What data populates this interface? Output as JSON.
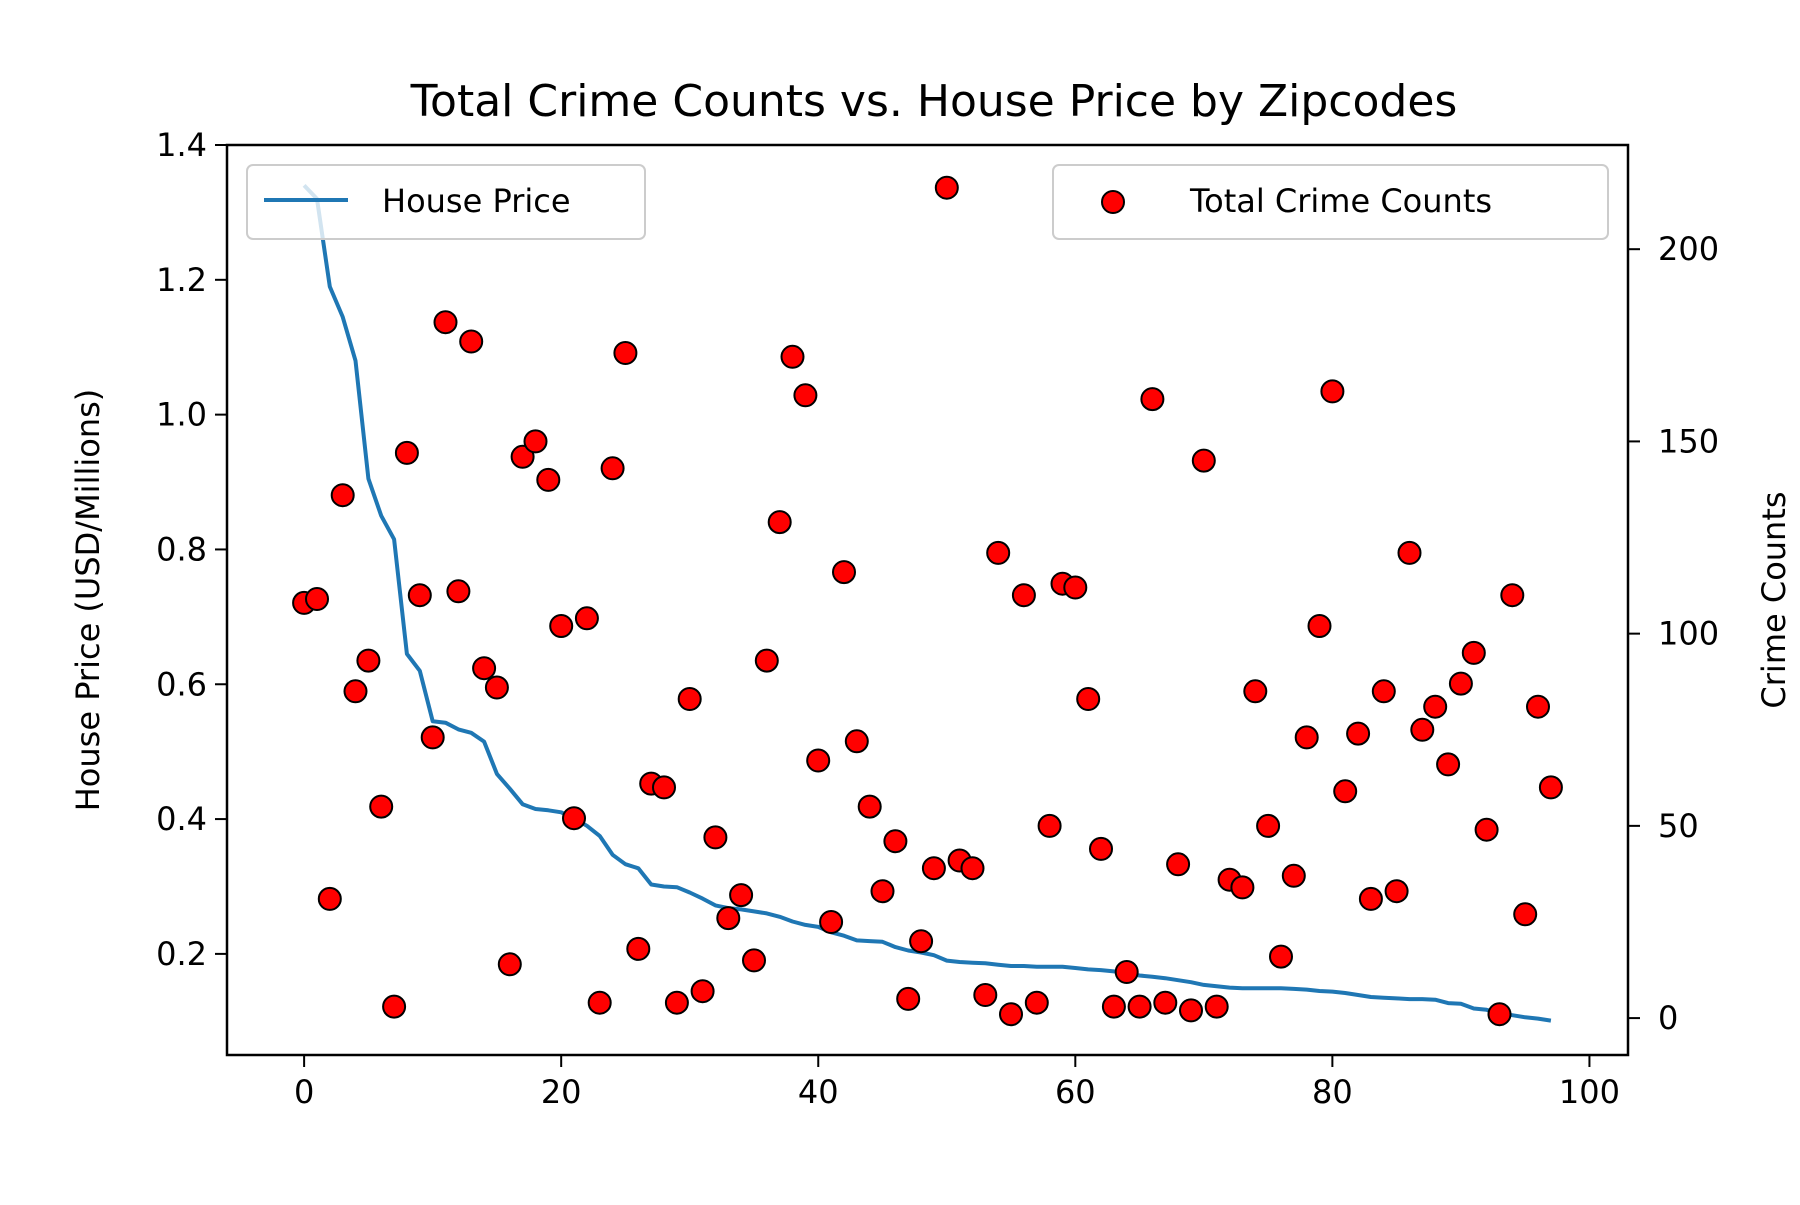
{
  "chart_data": {
    "type": "line+scatter",
    "title": "Total Crime Counts vs. House Price by Zipcodes",
    "xlabel": "",
    "ylabel_left": "House Price (USD/Millions)",
    "ylabel_right": "Crime Counts",
    "xlim": [
      -6,
      103
    ],
    "ylim_left": [
      0.05,
      1.4
    ],
    "ylim_right": [
      -9.6,
      227.1
    ],
    "xticks": [
      0,
      20,
      40,
      60,
      80,
      100
    ],
    "xtick_labels": [
      "0",
      "20",
      "40",
      "60",
      "80",
      "100"
    ],
    "yticks_left": [
      0.2,
      0.4,
      0.6,
      0.8,
      1.0,
      1.2,
      1.4
    ],
    "ytick_labels_left": [
      "0.2",
      "0.4",
      "0.6",
      "0.8",
      "1.0",
      "1.2",
      "1.4"
    ],
    "yticks_right": [
      0,
      50,
      100,
      150,
      200
    ],
    "ytick_labels_right": [
      "0",
      "50",
      "100",
      "150",
      "200"
    ],
    "grid": false,
    "legend_left": {
      "position": "upper-left",
      "label": "House Price"
    },
    "legend_right": {
      "position": "upper-right",
      "label": "Total Crime Counts"
    },
    "colors": {
      "line": "#1f77b4",
      "marker_fill": "#ff0000",
      "marker_edge": "#000000"
    },
    "series": [
      {
        "name": "House Price",
        "kind": "line",
        "axis": "left",
        "x": [
          0,
          1,
          2,
          3,
          4,
          5,
          6,
          7,
          8,
          9,
          10,
          11,
          12,
          13,
          14,
          15,
          16,
          17,
          18,
          19,
          20,
          21,
          22,
          23,
          24,
          25,
          26,
          27,
          28,
          29,
          30,
          31,
          32,
          33,
          34,
          35,
          36,
          37,
          38,
          39,
          40,
          41,
          42,
          43,
          44,
          45,
          46,
          47,
          48,
          49,
          50,
          51,
          52,
          53,
          54,
          55,
          56,
          57,
          58,
          59,
          60,
          61,
          62,
          63,
          64,
          65,
          66,
          67,
          68,
          69,
          70,
          71,
          72,
          73,
          74,
          75,
          76,
          77,
          78,
          79,
          80,
          81,
          82,
          83,
          84,
          85,
          86,
          87,
          88,
          89,
          90,
          91,
          92,
          93,
          94,
          95,
          96,
          97
        ],
        "values": [
          1.34,
          1.32,
          1.19,
          1.145,
          1.08,
          0.905,
          0.85,
          0.815,
          0.645,
          0.62,
          0.545,
          0.543,
          0.533,
          0.528,
          0.515,
          0.467,
          0.445,
          0.422,
          0.415,
          0.413,
          0.41,
          0.401,
          0.39,
          0.375,
          0.347,
          0.333,
          0.327,
          0.303,
          0.3,
          0.299,
          0.291,
          0.282,
          0.272,
          0.268,
          0.266,
          0.263,
          0.26,
          0.255,
          0.248,
          0.243,
          0.24,
          0.232,
          0.227,
          0.22,
          0.219,
          0.218,
          0.21,
          0.205,
          0.202,
          0.198,
          0.19,
          0.188,
          0.187,
          0.186,
          0.184,
          0.182,
          0.182,
          0.181,
          0.181,
          0.181,
          0.179,
          0.177,
          0.176,
          0.174,
          0.171,
          0.168,
          0.166,
          0.164,
          0.161,
          0.158,
          0.154,
          0.152,
          0.15,
          0.149,
          0.149,
          0.149,
          0.149,
          0.148,
          0.147,
          0.145,
          0.144,
          0.142,
          0.139,
          0.136,
          0.135,
          0.134,
          0.133,
          0.133,
          0.132,
          0.127,
          0.126,
          0.119,
          0.117,
          0.112,
          0.109,
          0.106,
          0.104,
          0.101
        ]
      },
      {
        "name": "Total Crime Counts",
        "kind": "scatter",
        "axis": "right",
        "x": [
          0,
          1,
          2,
          3,
          4,
          5,
          6,
          7,
          8,
          9,
          10,
          11,
          12,
          13,
          14,
          15,
          16,
          17,
          18,
          19,
          20,
          21,
          22,
          23,
          24,
          25,
          26,
          27,
          28,
          29,
          30,
          31,
          32,
          33,
          34,
          35,
          36,
          37,
          38,
          39,
          40,
          41,
          42,
          43,
          44,
          45,
          46,
          47,
          48,
          49,
          50,
          51,
          52,
          53,
          54,
          55,
          56,
          57,
          58,
          59,
          60,
          61,
          62,
          63,
          64,
          65,
          66,
          67,
          68,
          69,
          70,
          71,
          72,
          73,
          74,
          75,
          76,
          77,
          78,
          79,
          80,
          81,
          82,
          83,
          84,
          85,
          86,
          87,
          88,
          89,
          90,
          91,
          92,
          93,
          94,
          95,
          96,
          97
        ],
        "values": [
          108,
          109,
          31,
          136,
          85,
          93,
          55,
          3,
          147,
          110,
          73,
          181,
          111,
          176,
          91,
          86,
          14,
          146,
          150,
          140,
          102,
          52,
          104,
          4,
          143,
          173,
          18,
          61,
          60,
          4,
          83,
          7,
          47,
          26,
          32,
          15,
          93,
          129,
          172,
          162,
          67,
          25,
          116,
          72,
          55,
          33,
          46,
          5,
          20,
          39,
          216,
          41,
          39,
          6,
          121,
          1,
          110,
          4,
          50,
          113,
          112,
          83,
          44,
          3,
          12,
          3,
          161,
          4,
          40,
          2,
          145,
          3,
          36,
          34,
          85,
          50,
          16,
          37,
          73,
          102,
          163,
          59,
          74,
          31,
          85,
          33,
          121,
          75,
          81,
          66,
          87,
          95,
          49,
          1,
          110,
          27,
          81,
          60
        ]
      }
    ]
  }
}
